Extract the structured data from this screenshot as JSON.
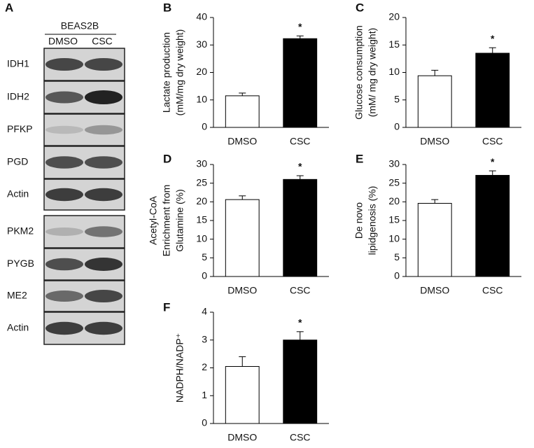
{
  "blot": {
    "label": "A",
    "cell_line": "BEAS2B",
    "lanes": [
      "DMSO",
      "CSC"
    ],
    "rows": [
      "IDH1",
      "IDH2",
      "PFKP",
      "PGD",
      "Actin",
      "PKM2",
      "PYGB",
      "ME2",
      "Actin"
    ]
  },
  "chart_data": [
    {
      "type": "bar",
      "label": "B",
      "ylabel": [
        "Lactate production",
        "(mM/mg dry weight)"
      ],
      "categories": [
        "DMSO",
        "CSC"
      ],
      "values": [
        11.5,
        32.3
      ],
      "errors": [
        1.0,
        1.0
      ],
      "colors": [
        "#ffffff",
        "#000000"
      ],
      "annotations": [
        null,
        "*"
      ],
      "ylim": [
        0,
        40
      ],
      "yticks": [
        0,
        10,
        20,
        30,
        40
      ]
    },
    {
      "type": "bar",
      "label": "C",
      "ylabel": [
        "Glucose consumption",
        "(mM/ mg dry weight)"
      ],
      "categories": [
        "DMSO",
        "CSC"
      ],
      "values": [
        9.4,
        13.5
      ],
      "errors": [
        1.0,
        1.0
      ],
      "colors": [
        "#ffffff",
        "#000000"
      ],
      "annotations": [
        null,
        "*"
      ],
      "ylim": [
        0,
        20
      ],
      "yticks": [
        0,
        5,
        10,
        15,
        20
      ]
    },
    {
      "type": "bar",
      "label": "D",
      "ylabel": [
        "Acetyl-CoA",
        "Enrichment from",
        "Glutamine (%)"
      ],
      "categories": [
        "DMSO",
        "CSC"
      ],
      "values": [
        20.6,
        26.0
      ],
      "errors": [
        1.0,
        1.0
      ],
      "colors": [
        "#ffffff",
        "#000000"
      ],
      "annotations": [
        null,
        "*"
      ],
      "ylim": [
        0,
        30
      ],
      "yticks": [
        0,
        5,
        10,
        15,
        20,
        25,
        30
      ]
    },
    {
      "type": "bar",
      "label": "E",
      "ylabel": [
        "De novo",
        "lipidgenosis (%)"
      ],
      "categories": [
        "DMSO",
        "CSC"
      ],
      "values": [
        19.6,
        27.1
      ],
      "errors": [
        1.0,
        1.2
      ],
      "colors": [
        "#ffffff",
        "#000000"
      ],
      "annotations": [
        null,
        "*"
      ],
      "ylim": [
        0,
        30
      ],
      "yticks": [
        0,
        5,
        10,
        15,
        20,
        25,
        30
      ]
    },
    {
      "type": "bar",
      "label": "F",
      "ylabel": [
        "NADPH/NADP⁺"
      ],
      "categories": [
        "DMSO",
        "CSC"
      ],
      "values": [
        2.05,
        3.0
      ],
      "errors": [
        0.35,
        0.3
      ],
      "colors": [
        "#ffffff",
        "#000000"
      ],
      "annotations": [
        null,
        "*"
      ],
      "ylim": [
        0,
        4
      ],
      "yticks": [
        0,
        1,
        2,
        3,
        4
      ]
    }
  ]
}
